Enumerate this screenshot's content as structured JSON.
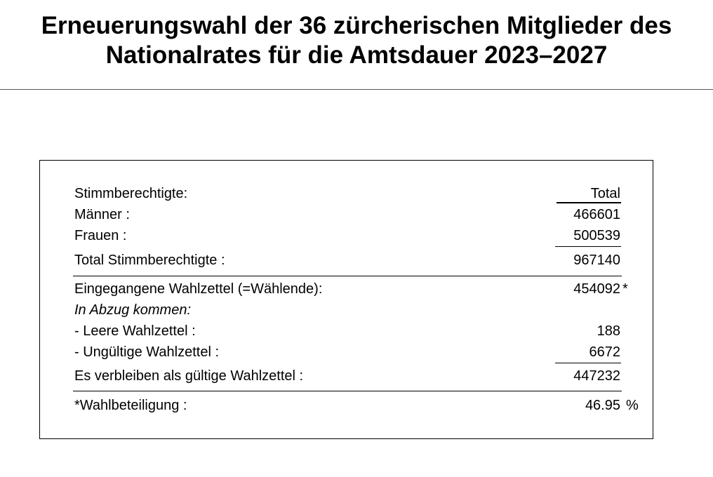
{
  "title": {
    "line1": "Erneuerungswahl der 36 zürcherischen Mitglieder des",
    "line2": "Nationalrates für die Amtsdauer 2023–2027"
  },
  "table": {
    "header_label": "Stimmberechtigte:",
    "column_header": "Total",
    "rows": [
      {
        "label": "Männer :",
        "value": "466601"
      },
      {
        "label": "Frauen :",
        "value": "500539"
      },
      {
        "label": "Total Stimmberechtigte :",
        "value": "967140"
      },
      {
        "label": "Eingegangene Wahlzettel (=Wählende):",
        "value": "454092",
        "suffix": "*"
      },
      {
        "label": "In Abzug kommen:",
        "value": ""
      },
      {
        "label": "- Leere Wahlzettel :",
        "value": "188"
      },
      {
        "label": "- Ungültige Wahlzettel :",
        "value": "6672"
      },
      {
        "label": "Es verbleiben als gültige Wahlzettel :",
        "value": "447232"
      },
      {
        "label": "*Wahlbeteiligung :",
        "value": "46.95",
        "suffix": "%"
      }
    ]
  }
}
